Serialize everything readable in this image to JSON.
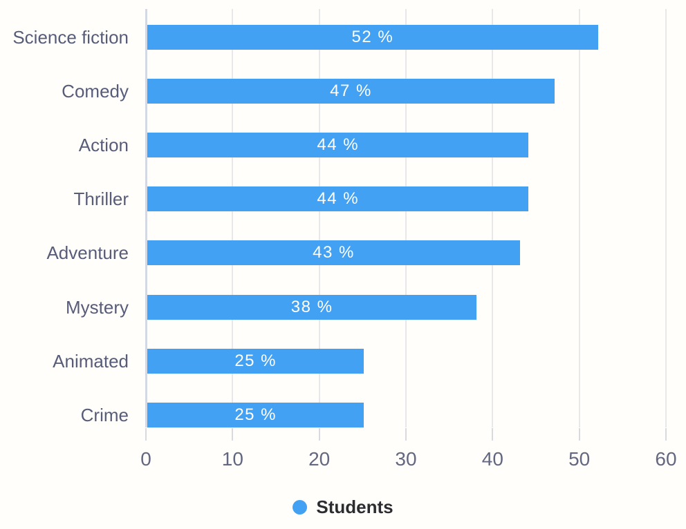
{
  "chart_data": {
    "type": "bar",
    "orientation": "horizontal",
    "title": "",
    "categories": [
      "Science fiction",
      "Comedy",
      "Action",
      "Thriller",
      "Adventure",
      "Mystery",
      "Animated",
      "Crime"
    ],
    "series": [
      {
        "name": "Students",
        "values": [
          52,
          47,
          44,
          44,
          43,
          38,
          25,
          25
        ]
      }
    ],
    "display_values": [
      "52 %",
      "47 %",
      "44 %",
      "44 %",
      "43 %",
      "38 %",
      "25 %",
      "25 %"
    ],
    "xlabel": "",
    "ylabel": "",
    "xlim": [
      0,
      60
    ],
    "x_ticks": [
      0,
      10,
      20,
      30,
      40,
      50,
      60
    ],
    "x_tick_labels": [
      "0",
      "10",
      "20",
      "30",
      "40",
      "50",
      "60"
    ],
    "grid": true,
    "legend": {
      "position": "bottom",
      "label": "Students"
    },
    "colors": {
      "bar": "#42a1f3",
      "value_label": "#ffffff",
      "category_label": "#575c78",
      "tick_label": "#63677f",
      "legend_text": "#2d2d31",
      "gridline": "#e8e8eb",
      "axis_line": "#d3d8e3",
      "background": "#fffefb"
    }
  }
}
